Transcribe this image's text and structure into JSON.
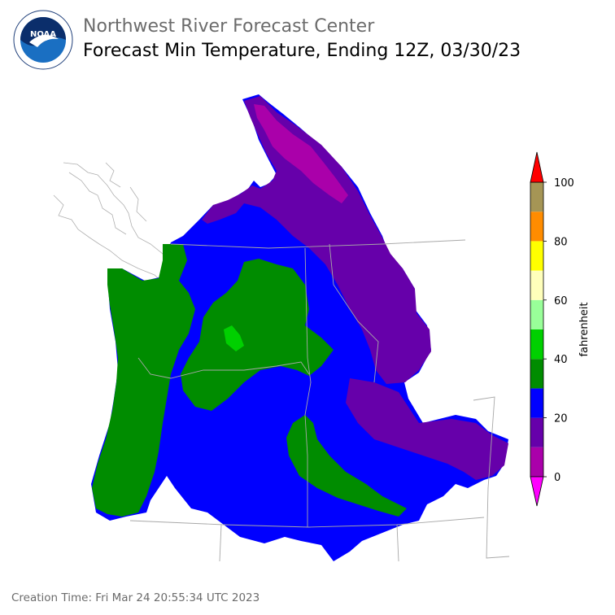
{
  "header": {
    "organization": "Northwest River Forecast Center",
    "title": "Forecast Min Temperature, Ending 12Z, 03/30/23"
  },
  "logo": {
    "text": "NOAA",
    "ring_text": "NATIONAL OCEANIC AND ATMOSPHERIC ADMINISTRATION • U.S. DEPARTMENT OF COMMERCE"
  },
  "colorbar": {
    "unit": "fahrenheit",
    "ticks": [
      "0",
      "20",
      "40",
      "60",
      "80",
      "100"
    ],
    "bins": [
      {
        "from": 0,
        "to": 10,
        "color": "#aa00aa"
      },
      {
        "from": 10,
        "to": 20,
        "color": "#6600aa"
      },
      {
        "from": 20,
        "to": 30,
        "color": "#0000ff"
      },
      {
        "from": 30,
        "to": 40,
        "color": "#008c00"
      },
      {
        "from": 40,
        "to": 50,
        "color": "#00d000"
      },
      {
        "from": 50,
        "to": 60,
        "color": "#99ff99"
      },
      {
        "from": 60,
        "to": 70,
        "color": "#ffffbb"
      },
      {
        "from": 70,
        "to": 80,
        "color": "#ffff00"
      },
      {
        "from": 80,
        "to": 90,
        "color": "#ff8c00"
      },
      {
        "from": 90,
        "to": 100,
        "color": "#a59555"
      }
    ],
    "under_color": "#ff00ff",
    "over_color": "#ff0000"
  },
  "footer": {
    "creation_time": "Creation Time: Fri Mar 24 20:55:34 UTC 2023"
  }
}
